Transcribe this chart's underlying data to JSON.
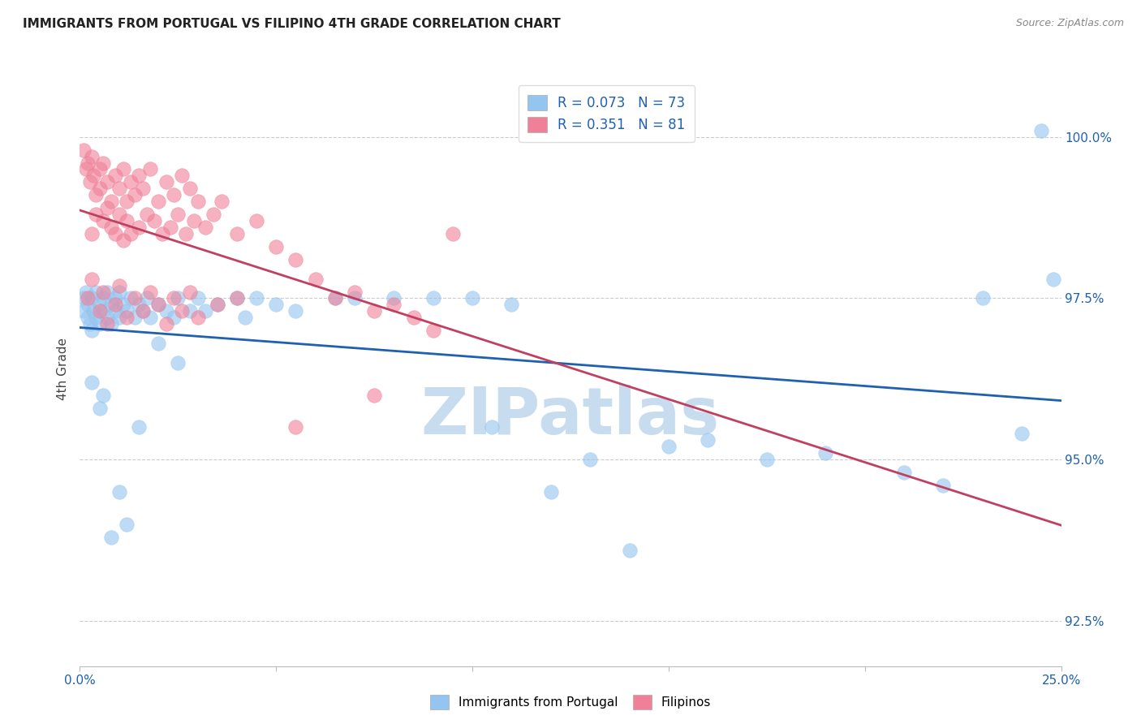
{
  "title": "IMMIGRANTS FROM PORTUGAL VS FILIPINO 4TH GRADE CORRELATION CHART",
  "source": "Source: ZipAtlas.com",
  "ylabel": "4th Grade",
  "ytick_labels": [
    "92.5%",
    "95.0%",
    "97.5%",
    "100.0%"
  ],
  "ytick_values": [
    92.5,
    95.0,
    97.5,
    100.0
  ],
  "xmin": 0.0,
  "xmax": 25.0,
  "ymin": 91.8,
  "ymax": 101.0,
  "legend_blue_r": "0.073",
  "legend_blue_n": "73",
  "legend_pink_r": "0.351",
  "legend_pink_n": "81",
  "blue_color": "#94C4F0",
  "pink_color": "#F08098",
  "blue_line_color": "#2060B0",
  "pink_line_color": "#C04060",
  "grid_color": "#cccccc",
  "watermark_color": "#C8DCF0",
  "blue_scatter_x": [
    0.1,
    0.1,
    0.15,
    0.2,
    0.2,
    0.25,
    0.3,
    0.3,
    0.35,
    0.4,
    0.4,
    0.5,
    0.5,
    0.6,
    0.6,
    0.7,
    0.7,
    0.8,
    0.8,
    0.9,
    0.9,
    1.0,
    1.0,
    1.1,
    1.2,
    1.3,
    1.4,
    1.5,
    1.6,
    1.7,
    1.8,
    2.0,
    2.2,
    2.4,
    2.5,
    2.8,
    3.0,
    3.2,
    3.5,
    4.0,
    4.2,
    4.5,
    5.0,
    5.5,
    6.5,
    7.0,
    8.0,
    9.0,
    10.0,
    10.5,
    11.0,
    12.0,
    13.0,
    14.0,
    15.0,
    16.0,
    17.5,
    19.0,
    21.0,
    22.0,
    23.0,
    24.0,
    24.5,
    0.3,
    0.5,
    0.6,
    0.8,
    1.0,
    1.2,
    1.5,
    2.0,
    2.5,
    24.8
  ],
  "blue_scatter_y": [
    97.5,
    97.3,
    97.6,
    97.2,
    97.4,
    97.1,
    97.5,
    97.0,
    97.3,
    97.6,
    97.2,
    97.4,
    97.1,
    97.5,
    97.3,
    97.2,
    97.6,
    97.4,
    97.1,
    97.5,
    97.3,
    97.2,
    97.6,
    97.4,
    97.3,
    97.5,
    97.2,
    97.4,
    97.3,
    97.5,
    97.2,
    97.4,
    97.3,
    97.2,
    97.5,
    97.3,
    97.5,
    97.3,
    97.4,
    97.5,
    97.2,
    97.5,
    97.4,
    97.3,
    97.5,
    97.5,
    97.5,
    97.5,
    97.5,
    95.5,
    97.4,
    94.5,
    95.0,
    93.6,
    95.2,
    95.3,
    95.0,
    95.1,
    94.8,
    94.6,
    97.5,
    95.4,
    100.1,
    96.2,
    95.8,
    96.0,
    93.8,
    94.5,
    94.0,
    95.5,
    96.8,
    96.5,
    97.8
  ],
  "pink_scatter_x": [
    0.1,
    0.15,
    0.2,
    0.25,
    0.3,
    0.3,
    0.35,
    0.4,
    0.4,
    0.5,
    0.5,
    0.6,
    0.6,
    0.7,
    0.7,
    0.8,
    0.8,
    0.9,
    0.9,
    1.0,
    1.0,
    1.1,
    1.1,
    1.2,
    1.2,
    1.3,
    1.3,
    1.4,
    1.5,
    1.5,
    1.6,
    1.7,
    1.8,
    1.9,
    2.0,
    2.1,
    2.2,
    2.3,
    2.4,
    2.5,
    2.6,
    2.7,
    2.8,
    2.9,
    3.0,
    3.2,
    3.4,
    3.6,
    4.0,
    4.5,
    5.0,
    5.5,
    6.0,
    6.5,
    7.0,
    7.5,
    8.0,
    8.5,
    9.5,
    0.2,
    0.3,
    0.5,
    0.6,
    0.7,
    0.9,
    1.0,
    1.2,
    1.4,
    1.6,
    1.8,
    2.0,
    2.2,
    2.4,
    2.6,
    2.8,
    3.0,
    3.5,
    4.0,
    5.5,
    7.5,
    9.0
  ],
  "pink_scatter_y": [
    99.8,
    99.5,
    99.6,
    99.3,
    99.7,
    98.5,
    99.4,
    99.1,
    98.8,
    99.5,
    99.2,
    99.6,
    98.7,
    99.3,
    98.9,
    99.0,
    98.6,
    99.4,
    98.5,
    99.2,
    98.8,
    99.5,
    98.4,
    99.0,
    98.7,
    99.3,
    98.5,
    99.1,
    99.4,
    98.6,
    99.2,
    98.8,
    99.5,
    98.7,
    99.0,
    98.5,
    99.3,
    98.6,
    99.1,
    98.8,
    99.4,
    98.5,
    99.2,
    98.7,
    99.0,
    98.6,
    98.8,
    99.0,
    98.5,
    98.7,
    98.3,
    98.1,
    97.8,
    97.5,
    97.6,
    97.3,
    97.4,
    97.2,
    98.5,
    97.5,
    97.8,
    97.3,
    97.6,
    97.1,
    97.4,
    97.7,
    97.2,
    97.5,
    97.3,
    97.6,
    97.4,
    97.1,
    97.5,
    97.3,
    97.6,
    97.2,
    97.4,
    97.5,
    95.5,
    96.0,
    97.0
  ]
}
